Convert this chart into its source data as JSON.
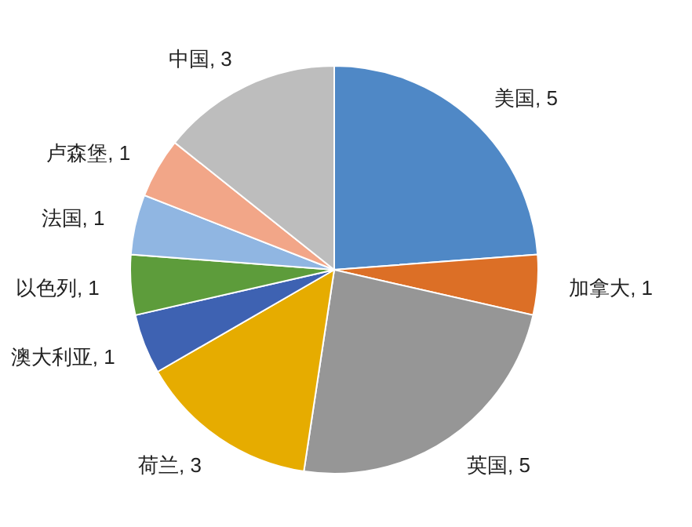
{
  "chart_data": {
    "type": "pie",
    "categories": [
      "美国",
      "加拿大",
      "英国",
      "荷兰",
      "澳大利亚",
      "以色列",
      "法国",
      "卢森堡",
      "中国"
    ],
    "values": [
      5,
      1,
      5,
      3,
      1,
      1,
      1,
      1,
      3
    ],
    "colors": [
      "#4f88c6",
      "#dc6f26",
      "#969696",
      "#e6ac00",
      "#3e62b2",
      "#5d9c3b",
      "#90b6e2",
      "#f2a688",
      "#bdbdbd"
    ],
    "value_labels": [
      ", 5",
      ", 1",
      ", 5",
      ", 3",
      ", 1",
      ", 1",
      ", 1",
      ", 1",
      ", 3"
    ]
  }
}
